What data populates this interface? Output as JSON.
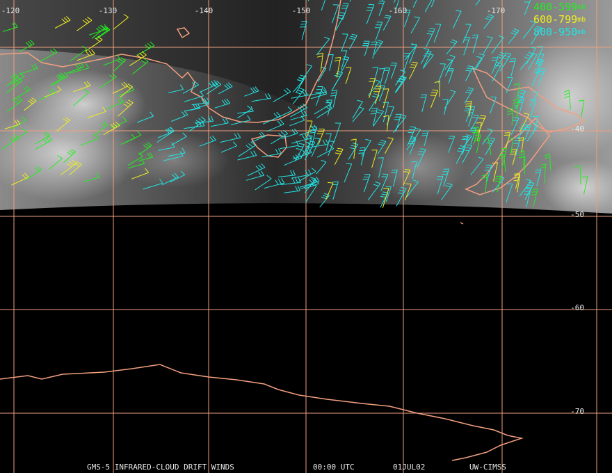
{
  "map": {
    "longitude_labels": [
      "-120",
      "-130",
      "-140",
      "-150",
      "-160",
      "-170"
    ],
    "latitude_labels": [
      "-40",
      "-50",
      "-60",
      "-70"
    ],
    "legend": [
      {
        "level": "400-599",
        "unit": "mb",
        "color": "#22ee22"
      },
      {
        "level": "600-799",
        "unit": "mb",
        "color": "#eeee22"
      },
      {
        "level": "800-950",
        "unit": "mb",
        "color": "#22e6e6"
      }
    ],
    "grid_color": "#f0a080",
    "footer": [
      "GMS-5 INFRARED-CLOUD DRIFT WINDS",
      "00:00 UTC",
      "01JUL02",
      "UW-CIMSS"
    ]
  }
}
